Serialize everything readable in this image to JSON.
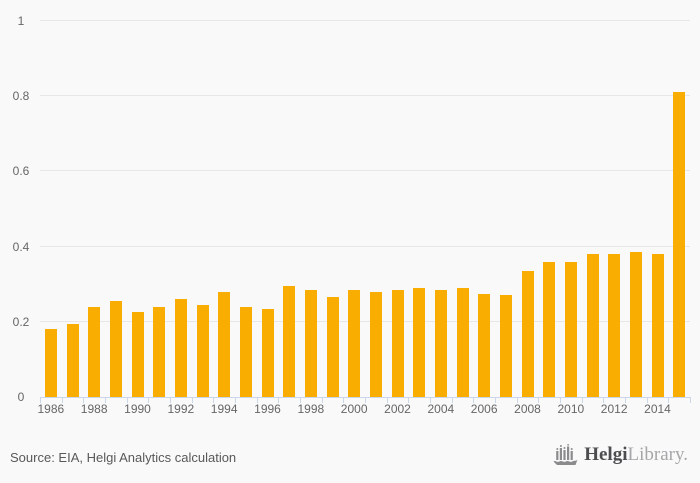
{
  "chart_data": {
    "type": "bar",
    "x": [
      1986,
      1987,
      1988,
      1989,
      1990,
      1991,
      1992,
      1993,
      1994,
      1995,
      1996,
      1997,
      1998,
      1999,
      2000,
      2001,
      2002,
      2003,
      2004,
      2005,
      2006,
      2007,
      2008,
      2009,
      2010,
      2011,
      2012,
      2013,
      2014,
      2015
    ],
    "values": [
      0.18,
      0.195,
      0.24,
      0.255,
      0.225,
      0.24,
      0.26,
      0.245,
      0.28,
      0.24,
      0.235,
      0.295,
      0.285,
      0.265,
      0.285,
      0.28,
      0.285,
      0.29,
      0.285,
      0.29,
      0.275,
      0.27,
      0.335,
      0.36,
      0.36,
      0.38,
      0.38,
      0.385,
      0.38,
      0.81
    ],
    "title": "",
    "xlabel": "",
    "ylabel": "",
    "ylim": [
      0,
      1
    ],
    "yticks": [
      0,
      0.2,
      0.4,
      0.6,
      0.8,
      1
    ],
    "ytick_labels": [
      "0",
      "0.2",
      "0.4",
      "0.6",
      "0.8",
      "1"
    ],
    "xtick_labels": [
      "1986",
      "1988",
      "1990",
      "1992",
      "1994",
      "1996",
      "1998",
      "2000",
      "2002",
      "2004",
      "2006",
      "2008",
      "2010",
      "2012",
      "2014"
    ],
    "grid": true,
    "legend_position": "none",
    "bar_color": "#F9AD00"
  },
  "colors": {
    "background": "#f9f9f9",
    "bar": "#F9AD00",
    "gridline": "#e7e7e7",
    "axis_line": "#ccd6eb",
    "tick_label": "#666666",
    "source_text": "#595959",
    "logo_primary": "#4d4d4f",
    "logo_secondary": "#a6a6a8",
    "logo_icon": "#8b8b8d"
  },
  "footer": {
    "source_text": "Source: EIA, Helgi Analytics calculation",
    "logo": {
      "icon": "helgi-ship-icon",
      "brand_primary": "Helgi",
      "brand_secondary": "Library."
    }
  }
}
